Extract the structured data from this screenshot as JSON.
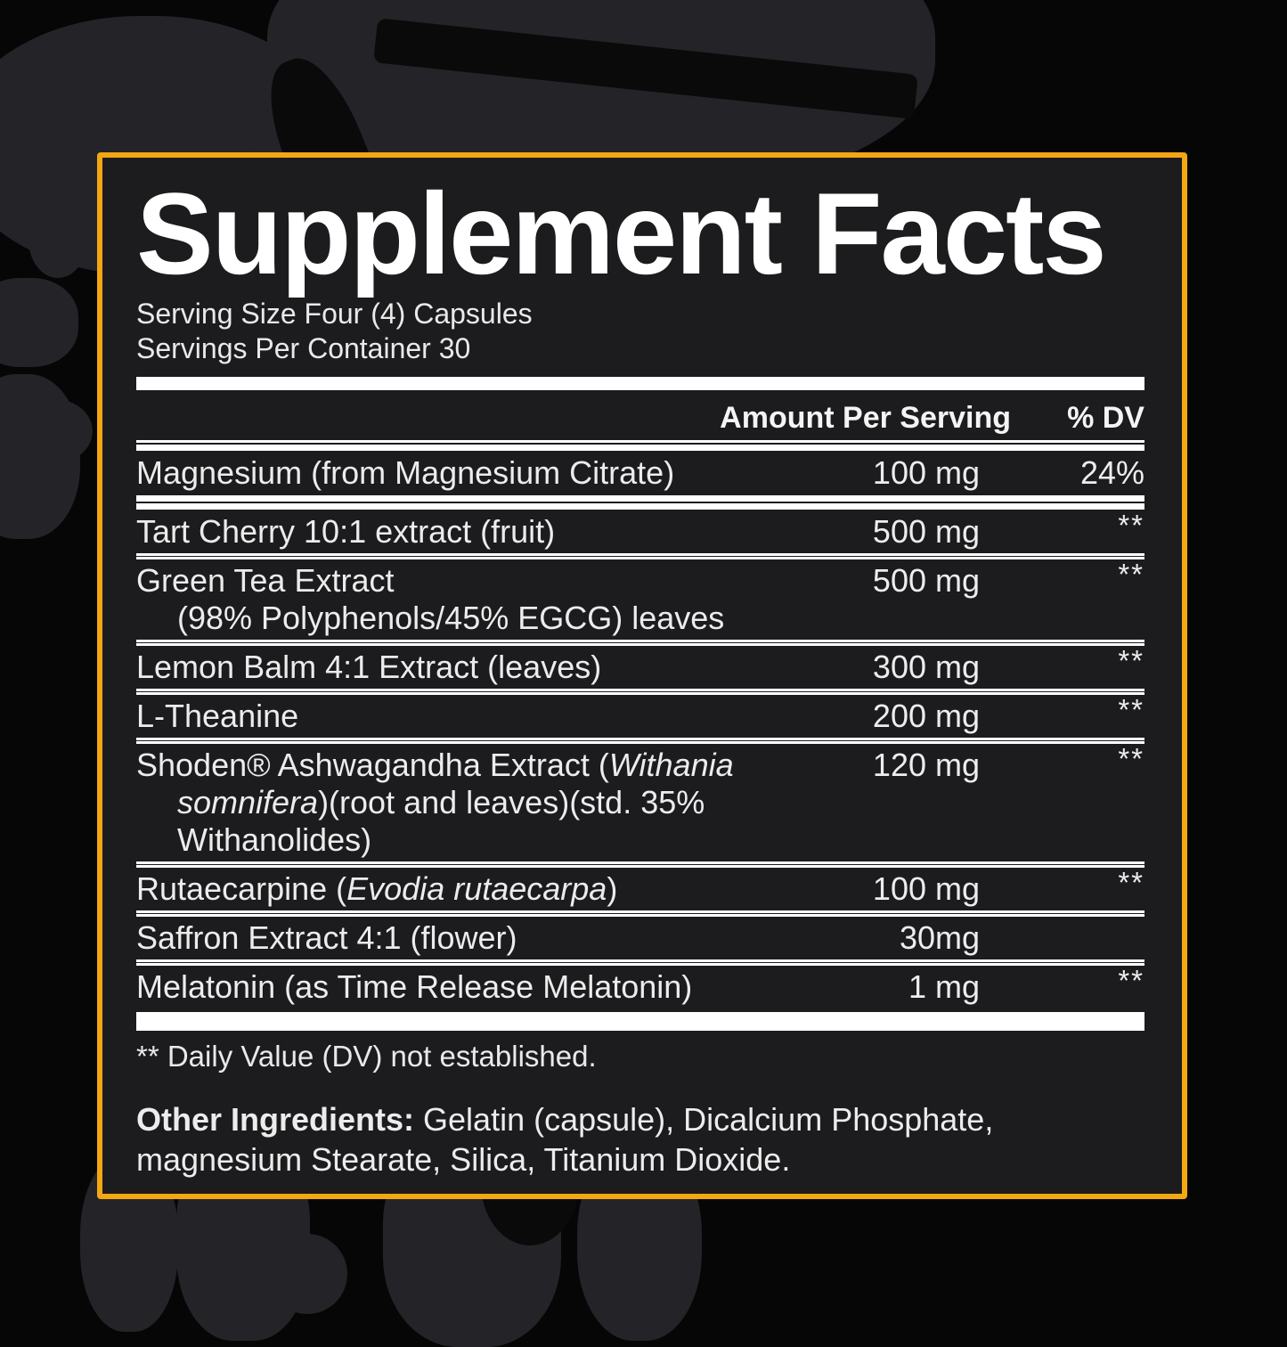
{
  "colors": {
    "page_bg": "#060606",
    "background_art": "#242428",
    "panel_bg": "#1c1c1e",
    "border_accent": "#F3A712",
    "text": "#ececec",
    "bar": "#ffffff"
  },
  "label": {
    "title": "Supplement Facts",
    "serving_size": "Serving Size Four (4) Capsules",
    "servings_per_container": "Servings Per Container 30",
    "header": {
      "amount": "Amount Per Serving",
      "dv": "% DV"
    },
    "rows": [
      {
        "lines": [
          [
            {
              "text": "Magnesium (from Magnesium Citrate)"
            }
          ]
        ],
        "amount": "100 mg",
        "dv": "24%"
      },
      {
        "lines": [
          [
            {
              "text": "Tart Cherry 10:1 extract (fruit)"
            }
          ]
        ],
        "amount": "500 mg",
        "dv": "**"
      },
      {
        "lines": [
          [
            {
              "text": "Green Tea Extract"
            }
          ],
          [
            {
              "text": "(98% Polyphenols/45% EGCG) leaves"
            }
          ]
        ],
        "amount": "500 mg",
        "dv": "**"
      },
      {
        "lines": [
          [
            {
              "text": "Lemon Balm 4:1 Extract (leaves)"
            }
          ]
        ],
        "amount": "300 mg",
        "dv": "**"
      },
      {
        "lines": [
          [
            {
              "text": "L-Theanine"
            }
          ]
        ],
        "amount": "200 mg",
        "dv": "**"
      },
      {
        "lines": [
          [
            {
              "text": "Shoden® Ashwagandha Extract ("
            },
            {
              "text": "Withania",
              "italic": true
            }
          ],
          [
            {
              "text": "somnifera",
              "italic": true
            },
            {
              "text": ")(root and leaves)(std. 35%"
            }
          ],
          [
            {
              "text": "Withanolides)"
            }
          ]
        ],
        "amount": "120 mg",
        "dv": "**"
      },
      {
        "lines": [
          [
            {
              "text": "Rutaecarpine ("
            },
            {
              "text": "Evodia rutaecarpa",
              "italic": true
            },
            {
              "text": ")"
            }
          ]
        ],
        "amount": "100 mg",
        "dv": "**"
      },
      {
        "lines": [
          [
            {
              "text": "Saffron Extract 4:1 (flower)"
            }
          ]
        ],
        "amount": "30mg",
        "dv": ""
      },
      {
        "lines": [
          [
            {
              "text": "Melatonin (as Time Release Melatonin)"
            }
          ]
        ],
        "amount": "1 mg",
        "dv": "**"
      }
    ],
    "footnote": "** Daily Value (DV) not established.",
    "other_ingredients": {
      "label": "Other Ingredients:",
      "text": " Gelatin (capsule), Dicalcium Phosphate, magnesium Stearate, Silica, Titanium Dioxide."
    }
  }
}
